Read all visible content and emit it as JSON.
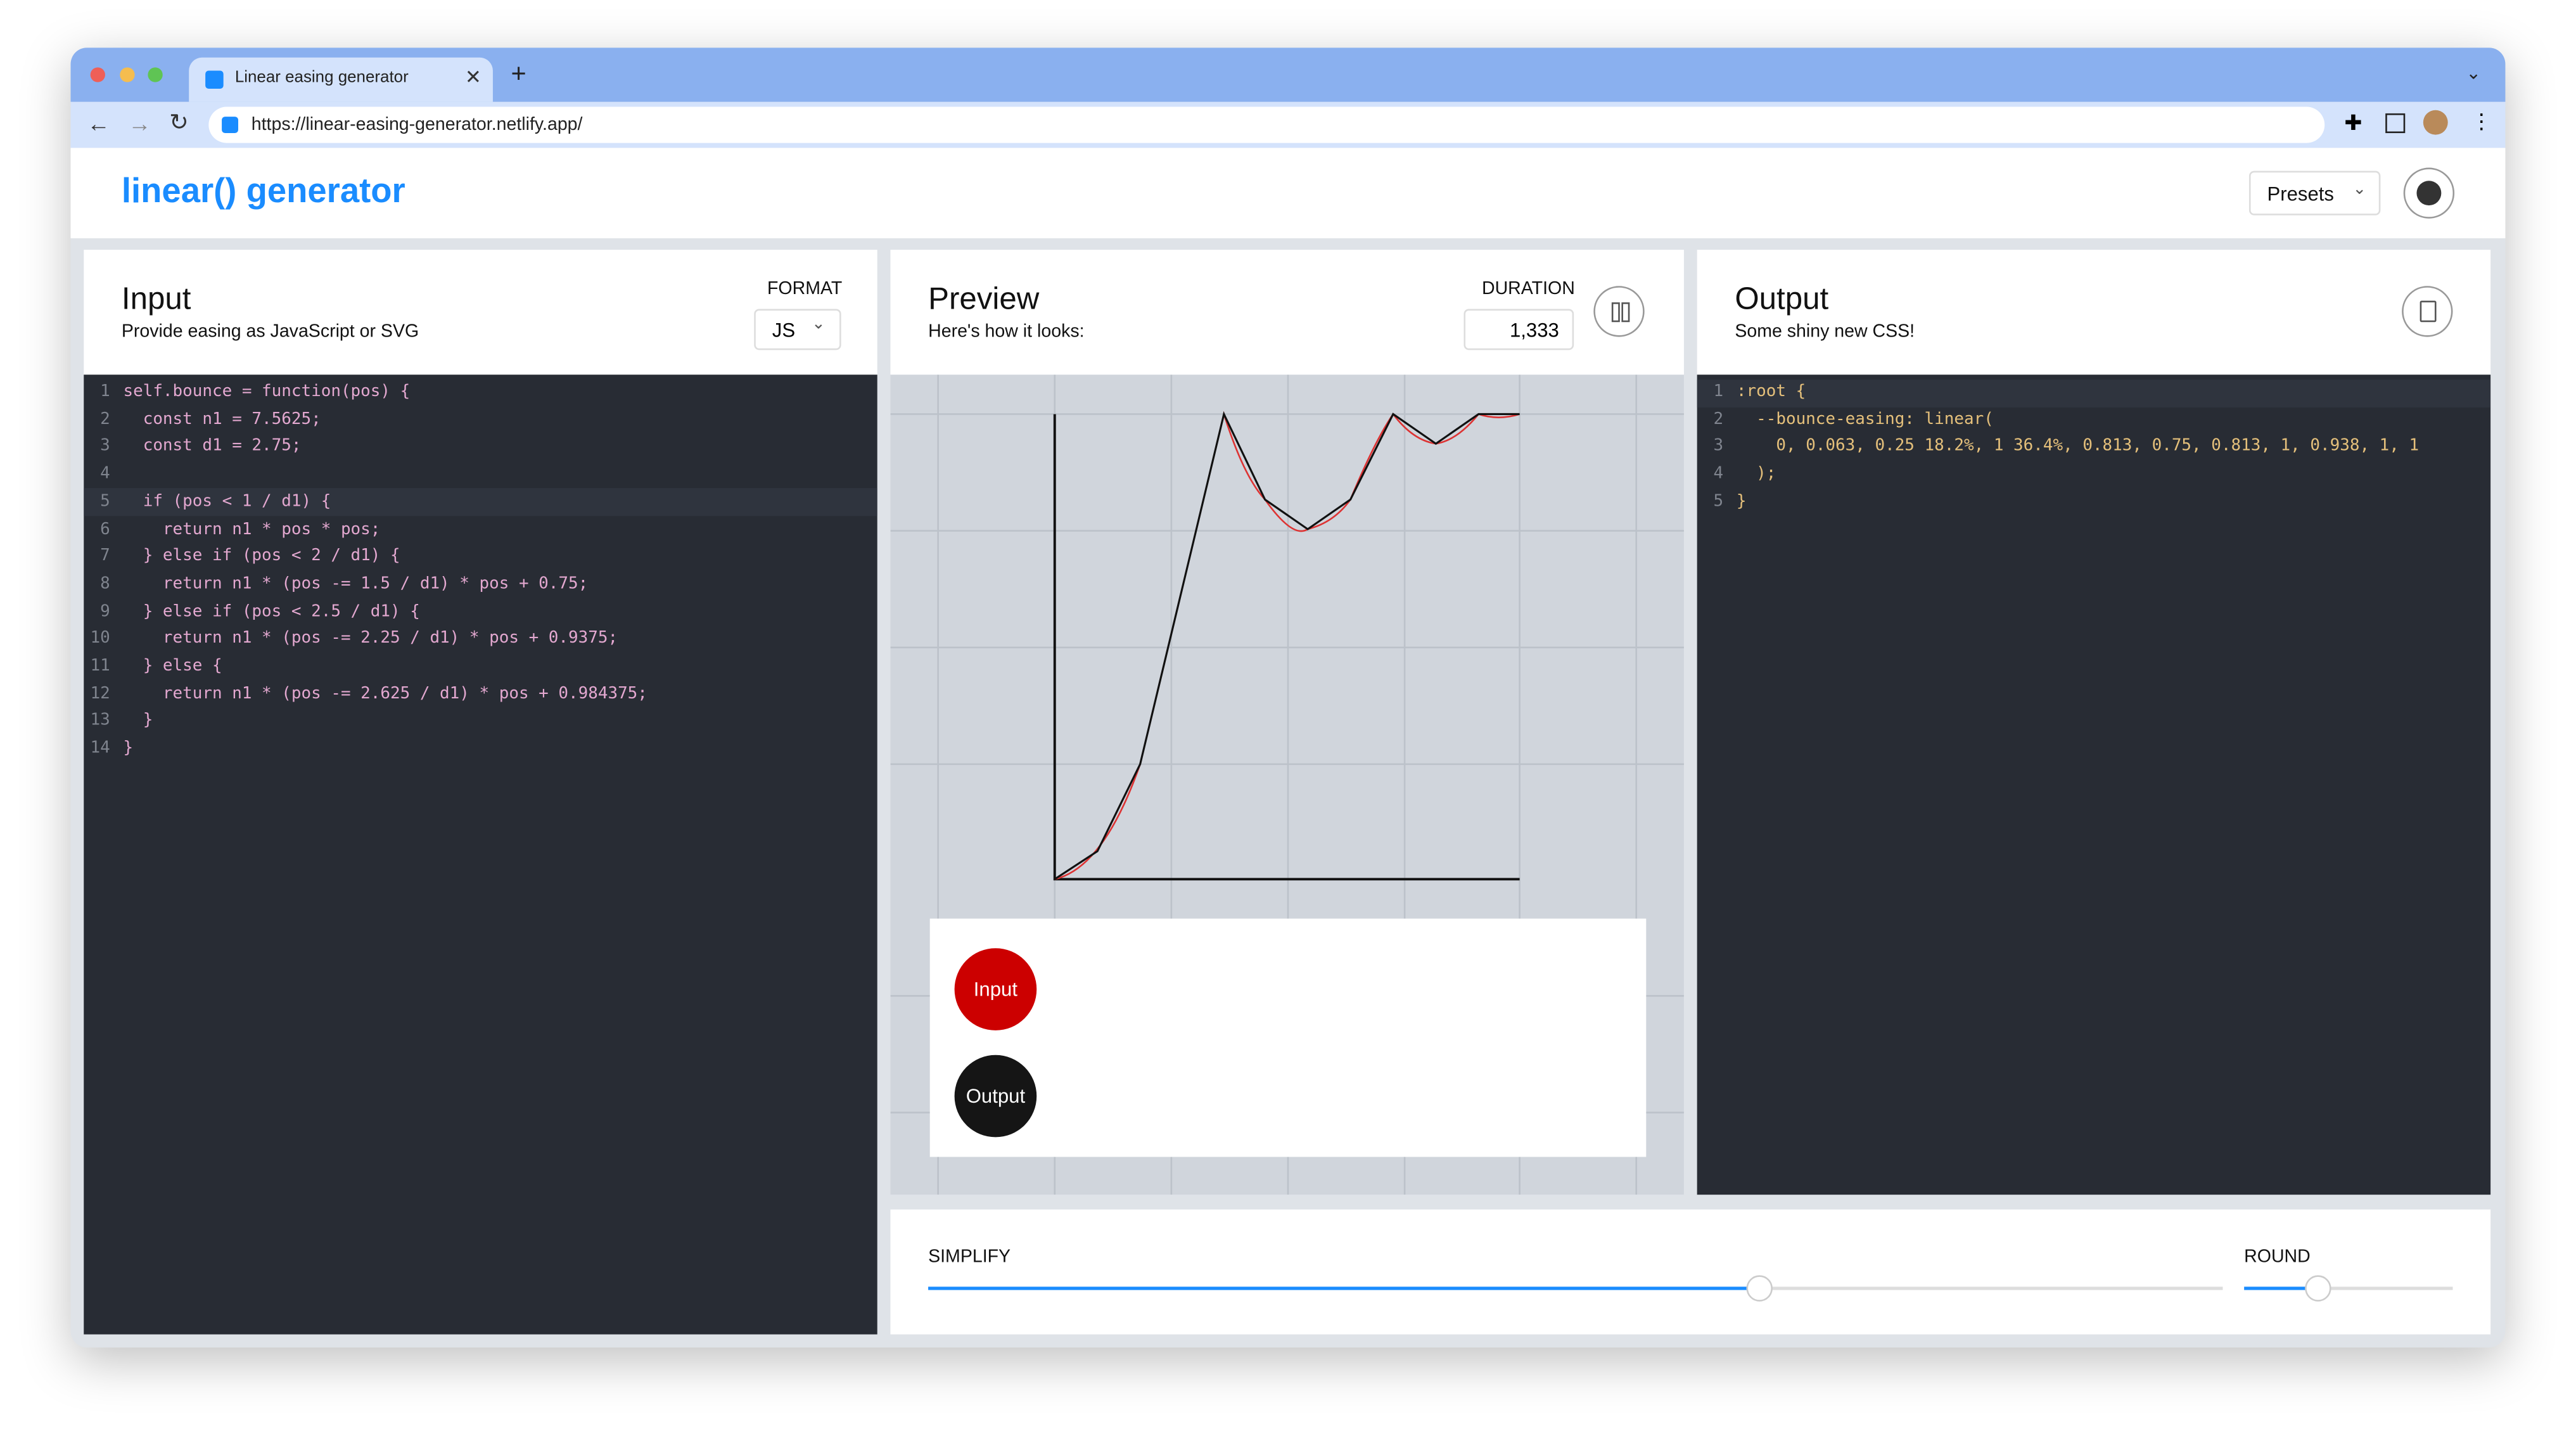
{
  "browser": {
    "tab_title": "Linear easing generator",
    "url": "https://linear-easing-generator.netlify.app/"
  },
  "header": {
    "title": "linear() generator",
    "presets": "Presets"
  },
  "input": {
    "title": "Input",
    "subtitle": "Provide easing as JavaScript or SVG",
    "format_label": "FORMAT",
    "format": "JS",
    "code": [
      {
        "line": 1,
        "text": "self.bounce = function(pos) {"
      },
      {
        "line": 2,
        "text": "  const n1 = 7.5625;"
      },
      {
        "line": 3,
        "text": "  const d1 = 2.75;"
      },
      {
        "line": 4
      },
      {
        "line": 5,
        "text": "  if (pos < 1 / d1) {"
      },
      {
        "line": 6,
        "text": "    return n1 * pos * pos;"
      },
      {
        "line": 7,
        "text": "  } else if (pos < 2 / d1) {"
      },
      {
        "line": 8,
        "text": "    return n1 * (pos -= 1.5 / d1) * pos + 0.75;"
      },
      {
        "line": 9,
        "text": "  } else if (pos < 2.5 / d1) {"
      },
      {
        "line": 10,
        "text": "    return n1 * (pos -= 2.25 / d1) * pos + 0.9375;"
      },
      {
        "line": 11,
        "text": "  } else {"
      },
      {
        "line": 12,
        "text": "    return n1 * (pos -= 2.625 / d1) * pos + 0.984375;"
      },
      {
        "line": 13,
        "text": "  }"
      },
      {
        "line": 14,
        "text": "}"
      }
    ]
  },
  "preview": {
    "title": "Preview",
    "subtitle": "Here's how it looks:",
    "duration_label": "DURATION",
    "duration": "1,333",
    "input_ball": "Input",
    "output_ball": "Output"
  },
  "output": {
    "title": "Output",
    "subtitle": "Some shiny new CSS!",
    "code": [
      {
        "line": 1,
        "text": ":root {"
      },
      {
        "line": 2,
        "text": "  --bounce-easing: linear("
      },
      {
        "line": 3,
        "text": "    0, 0.063, 0.25 18.2%, 1 36.4%, 0.813, 0.75, 0.813, 1, 0.938, 1, 1"
      },
      {
        "line": 4,
        "text": "  );"
      },
      {
        "line": 5,
        "text": "}"
      }
    ]
  },
  "controls": {
    "simplify": "SIMPLIFY",
    "round": "ROUND"
  }
}
